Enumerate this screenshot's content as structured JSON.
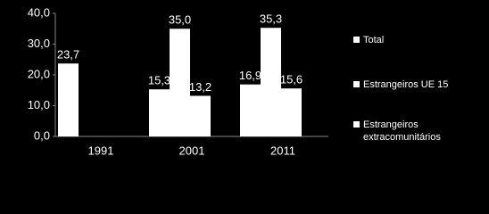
{
  "chart_data": {
    "type": "bar",
    "categories": [
      "1991",
      "2001",
      "2011"
    ],
    "series": [
      {
        "name": "Total",
        "color": "#ffffff",
        "values": [
          23.7,
          15.3,
          16.9
        ],
        "value_labels": [
          "23,7",
          "15,3",
          "16,9"
        ]
      },
      {
        "name": "Estrangeiros UE 15",
        "color": "#ffffff",
        "values": [
          null,
          35.0,
          35.3
        ],
        "value_labels": [
          null,
          "35,0",
          "35,3"
        ]
      },
      {
        "name": "Estrangeiros extracomunitários",
        "color": "#ffffff",
        "values": [
          null,
          13.2,
          15.6
        ],
        "value_labels": [
          null,
          "13,2",
          "15,6"
        ]
      }
    ],
    "ylim": [
      0,
      40
    ],
    "yticks": [
      {
        "value": 0,
        "label": "0,0"
      },
      {
        "value": 10,
        "label": "10,0"
      },
      {
        "value": 20,
        "label": "20,0"
      },
      {
        "value": 30,
        "label": "30,0"
      },
      {
        "value": 40,
        "label": "40,0"
      }
    ],
    "grid": false
  }
}
